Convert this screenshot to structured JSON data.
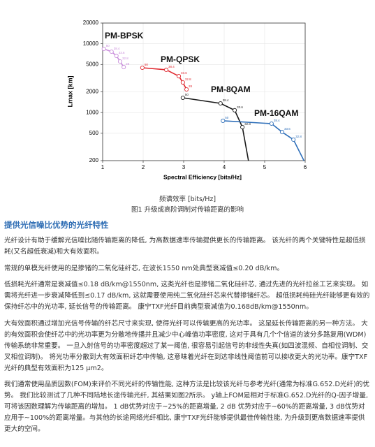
{
  "chart_data": {
    "type": "line",
    "xlabel": "Spectral Efficiency [bits/Hz]",
    "ylabel": "Lmax [km]",
    "xlim": [
      1,
      6
    ],
    "xticks": [
      1,
      2,
      3,
      4,
      5,
      6
    ],
    "ylim": [
      200,
      20000
    ],
    "yticks": [
      200,
      500,
      1000,
      2000,
      5000,
      10000,
      20000
    ],
    "log_y": true,
    "grid": true,
    "series": [
      {
        "name": "PM-BPSK",
        "color": "#c98ddb",
        "x": [
          1.03,
          1.22,
          1.34,
          1.43,
          1.52
        ],
        "values": [
          8420,
          7670,
          6670,
          5530,
          4580
        ],
        "point_labels": [
          "50",
          "38.4",
          "33.6",
          "32.8",
          "28"
        ]
      },
      {
        "name": "PM-QPSK",
        "color": "#e0282f",
        "x": [
          1.98,
          2.57,
          2.88,
          2.98,
          3.07
        ],
        "values": [
          4480,
          4180,
          3380,
          2740,
          2170
        ],
        "point_labels": [
          "50",
          "38.4",
          "33.6",
          "32.8",
          "28"
        ]
      },
      {
        "name": "PM-8QAM",
        "color": "#1a1a1a",
        "x": [
          2.98,
          3.91,
          4.26,
          4.45,
          4.6
        ],
        "values": [
          1640,
          1360,
          1080,
          614,
          200
        ],
        "point_labels": [
          "50",
          "38.4",
          "33.6",
          "32.8",
          null
        ]
      },
      {
        "name": "PM-16QAM",
        "color": "#2f6fb9",
        "x": [
          3.97,
          5.17,
          5.43,
          5.71,
          5.97
        ],
        "values": [
          759,
          690,
          521,
          404,
          200
        ],
        "point_labels": [
          "50",
          "38.4",
          "33.6",
          "32.8",
          null
        ]
      }
    ]
  },
  "document": {
    "figure": {
      "axis_caption": "频谱效率 [bits/Hz]",
      "caption": "图1 升级成高阶调制对传输距离的影响"
    },
    "heading": "提供光信噪比优势的光纤特性",
    "paragraphs": [
      "光纤设计有助于缓解光信噪比随传输距离的降低, 为高数据速率传输提供更长的传输距离。 该光纤的两个关键特性是超低损耗(又名超低衰减)和大有效面积。",
      "常规的单模光纤使用的是掺锗的二氧化硅纤芯, 在波长1550 nm处典型衰减值≤0.20 dB/km。",
      "低损耗光纤通常是衰减值≤0.18 dB/km@1550nm, 这类光纤也是掺锗二氧化硅纤芯, 通过先进的光纤拉丝工艺来实现。 如需将光纤进一步衰减降低到≤0.17 dB/km, 这就需要使用纯二氧化硅纤芯来代替掺锗纤芯。 超低损耗纯硅光纤能够更有效的保持纤芯中的光功率, 延长信号的传输距离。 康宁TXF光纤目前典型衰减值为0.168dB/km@1550nm。",
      "大有效面积通过增加光信号传输的纤芯尺寸来实现, 使得光纤可以传输更高的光功率。 这是延长传输距离的另一种方法。 大的有效面积会使纤芯中的光功率更为分散地传播并且减少中心峰值功率密度, 这对于具有几个个信道的波分多路复用(WDM)传输系统非常重要。 一旦入射信号的功率密度超过了某一阈值, 很容易引起信号的非线性失真(如四波混频、自相位调制、交叉相位调制)。 将光功率分散到大有效面积纤芯中传输, 这意味着光纤在到达非线性阈值前可以接收更大的光功率。康宁TXF光纤的典型有效面积为125 μm2。",
      "我们通常使用品质因数(FOM)来评价不同光纤的传输性能, 这种方法是比较该光纤与参考光纤(通常为标准G.652.D光纤)的优势。 我们比较测试了几种不同陆地长途传输光纤, 其结果如图2所示。 y轴上FOM是相对于标准G.652.D光纤的Q-因子增量, 可将该因数理解为传输距离的增加。 1 dB优势对应于~25%的距离增量, 2 dB 优势对应于~60%的距离增量, 3 dB优势对应用于~100%的距离增量。与其他的长途网络光纤相比, 康宁TXF光纤能够提供最佳传输性能, 为升级到更高数据速率提供更大的空间。"
    ]
  }
}
